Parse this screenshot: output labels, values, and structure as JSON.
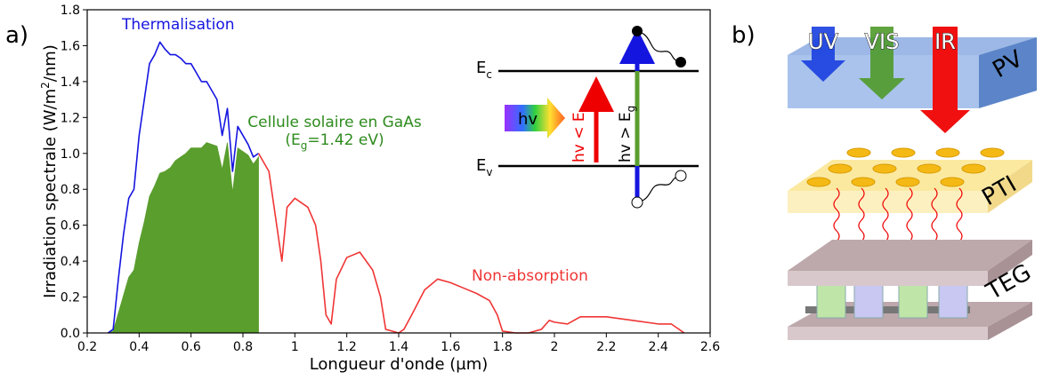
{
  "panels": {
    "a": "a)",
    "b": "b)"
  },
  "chart_data": {
    "type": "line",
    "x_label": "Longueur d'onde (µm)",
    "y_label": [
      "Irradiation spectrale (W/m",
      "2",
      "/nm)"
    ],
    "xlim": [
      0.2,
      2.6
    ],
    "xticks": [
      0.2,
      0.4,
      0.6,
      0.8,
      1,
      1.2,
      1.4,
      1.6,
      1.8,
      2,
      2.2,
      2.4,
      2.6
    ],
    "ylim": [
      0,
      1.8
    ],
    "yticks": [
      {
        "value": 0,
        "label": "0.0"
      },
      0.2,
      0.4,
      0.6,
      0.8,
      {
        "value": 1,
        "label": "1.0"
      },
      1.2,
      1.4,
      1.6,
      1.8
    ],
    "grid": false,
    "series": [
      {
        "name": "Cellule solaire en GaAs",
        "color": "#5a9e2e",
        "style": "area",
        "x": [
          0.28,
          0.3,
          0.32,
          0.34,
          0.36,
          0.38,
          0.4,
          0.42,
          0.44,
          0.46,
          0.48,
          0.5,
          0.52,
          0.54,
          0.56,
          0.58,
          0.6,
          0.62,
          0.64,
          0.66,
          0.68,
          0.7,
          0.72,
          0.74,
          0.76,
          0.78,
          0.8,
          0.82,
          0.84,
          0.86
        ],
        "values": [
          0,
          0.01,
          0.11,
          0.21,
          0.31,
          0.35,
          0.5,
          0.62,
          0.76,
          0.82,
          0.89,
          0.9,
          0.92,
          0.96,
          0.98,
          1.0,
          1.03,
          1.03,
          1.03,
          1.06,
          1.05,
          1.04,
          0.91,
          1.06,
          0.78,
          1.03,
          1.01,
          0.99,
          0.94,
          0.98
        ]
      },
      {
        "name": "Thermalisation",
        "color": "#1515e0",
        "x": [
          0.28,
          0.3,
          0.32,
          0.34,
          0.36,
          0.38,
          0.4,
          0.42,
          0.44,
          0.46,
          0.48,
          0.5,
          0.52,
          0.54,
          0.56,
          0.58,
          0.6,
          0.62,
          0.64,
          0.66,
          0.68,
          0.7,
          0.72,
          0.74,
          0.76,
          0.78,
          0.8,
          0.82,
          0.84,
          0.86
        ],
        "values": [
          0,
          0.02,
          0.3,
          0.55,
          0.75,
          0.8,
          1.1,
          1.3,
          1.5,
          1.55,
          1.62,
          1.58,
          1.55,
          1.55,
          1.53,
          1.5,
          1.5,
          1.45,
          1.4,
          1.4,
          1.35,
          1.3,
          1.1,
          1.25,
          0.9,
          1.15,
          1.1,
          1.05,
          0.98,
          1.0
        ]
      },
      {
        "name": "Non-absorption",
        "color": "#f03535",
        "x": [
          0.86,
          0.9,
          0.93,
          0.95,
          0.97,
          1.0,
          1.05,
          1.08,
          1.1,
          1.12,
          1.14,
          1.16,
          1.2,
          1.25,
          1.3,
          1.33,
          1.35,
          1.4,
          1.42,
          1.45,
          1.5,
          1.55,
          1.6,
          1.65,
          1.7,
          1.75,
          1.78,
          1.8,
          1.85,
          1.9,
          1.95,
          1.98,
          2.0,
          2.05,
          2.1,
          2.15,
          2.2,
          2.3,
          2.4,
          2.45,
          2.5
        ],
        "values": [
          1.0,
          0.9,
          0.6,
          0.4,
          0.7,
          0.75,
          0.7,
          0.6,
          0.4,
          0.1,
          0.05,
          0.3,
          0.42,
          0.45,
          0.35,
          0.2,
          0.02,
          0,
          0.02,
          0.1,
          0.24,
          0.3,
          0.28,
          0.25,
          0.22,
          0.18,
          0.1,
          0.01,
          0,
          0,
          0.02,
          0.07,
          0.06,
          0.05,
          0.09,
          0.09,
          0.09,
          0.07,
          0.05,
          0.05,
          0
        ]
      }
    ],
    "gaas_gap": [
      "(E",
      "g",
      "=1.42 eV)"
    ],
    "inset": {
      "ec": [
        "E",
        "c"
      ],
      "ev": [
        "E",
        "v"
      ],
      "photon": "hv",
      "below_gap": [
        "hv < E",
        "g"
      ],
      "above_gap": [
        "hv > E",
        "g"
      ]
    }
  },
  "diagram": {
    "layers": {
      "pv": "PV",
      "pti": "PTI",
      "teg": "TEG"
    },
    "light": {
      "uv": "UV",
      "vis": "VIS",
      "ir": "IR"
    }
  }
}
